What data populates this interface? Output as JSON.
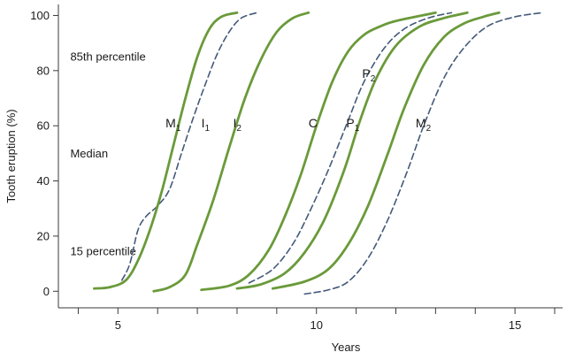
{
  "chart_data": {
    "type": "line",
    "xlabel": "Years",
    "ylabel": "Tooth eruption (%)",
    "xlim": [
      3.5,
      16.2
    ],
    "ylim": [
      -6,
      104
    ],
    "xticks": [
      4,
      5,
      6,
      7,
      8,
      9,
      10,
      11,
      12,
      13,
      14,
      15,
      16
    ],
    "xtick_labels": [
      "",
      "5",
      "",
      "",
      "",
      "",
      "10",
      "",
      "",
      "",
      "",
      "15",
      ""
    ],
    "yticks": [
      0,
      20,
      40,
      60,
      80,
      100
    ],
    "ytick_labels": [
      "0",
      "20",
      "40",
      "60",
      "80",
      "100"
    ],
    "grid": false,
    "colors": {
      "solid": "#6a9a3a",
      "dashed": "#44597a"
    },
    "annotations": [
      {
        "text": "85th percentile",
        "x": 3.8,
        "y": 85
      },
      {
        "text": "Median",
        "x": 3.8,
        "y": 50
      },
      {
        "text": "15 percentile",
        "x": 3.8,
        "y": 14.5
      }
    ],
    "series": [
      {
        "name": "M1",
        "label_main": "M",
        "label_sub": "1",
        "label_pos": [
          6.2,
          61
        ],
        "style": "solid",
        "points": [
          [
            4.4,
            1
          ],
          [
            4.8,
            1.5
          ],
          [
            5.2,
            4
          ],
          [
            5.5,
            11
          ],
          [
            5.8,
            22
          ],
          [
            6.1,
            36
          ],
          [
            6.4,
            53
          ],
          [
            6.7,
            70
          ],
          [
            7.0,
            85
          ],
          [
            7.3,
            95
          ],
          [
            7.6,
            99.5
          ],
          [
            8.0,
            101
          ]
        ]
      },
      {
        "name": "I1",
        "label_main": "I",
        "label_sub": "1",
        "label_pos": [
          7.1,
          61
        ],
        "style": "dashed",
        "points": [
          [
            5.1,
            4
          ],
          [
            5.3,
            10
          ],
          [
            5.5,
            22
          ],
          [
            5.7,
            27
          ],
          [
            6.0,
            31
          ],
          [
            6.3,
            37
          ],
          [
            6.6,
            50
          ],
          [
            6.9,
            63
          ],
          [
            7.2,
            75
          ],
          [
            7.5,
            86
          ],
          [
            7.8,
            94
          ],
          [
            8.1,
            99
          ],
          [
            8.5,
            101
          ]
        ]
      },
      {
        "name": "I2",
        "label_main": "I",
        "label_sub": "2",
        "label_pos": [
          7.9,
          61
        ],
        "style": "solid",
        "points": [
          [
            5.9,
            0
          ],
          [
            6.3,
            1.5
          ],
          [
            6.7,
            6
          ],
          [
            7.0,
            17
          ],
          [
            7.4,
            33
          ],
          [
            7.8,
            52
          ],
          [
            8.2,
            70
          ],
          [
            8.6,
            84
          ],
          [
            9.0,
            94
          ],
          [
            9.4,
            99
          ],
          [
            9.8,
            101
          ]
        ]
      },
      {
        "name": "C",
        "label_main": "C",
        "label_sub": "",
        "label_pos": [
          9.8,
          61
        ],
        "style": "solid",
        "points": [
          [
            7.1,
            0.5
          ],
          [
            7.8,
            2
          ],
          [
            8.3,
            6
          ],
          [
            8.8,
            15
          ],
          [
            9.2,
            27
          ],
          [
            9.6,
            42
          ],
          [
            10.0,
            60
          ],
          [
            10.4,
            76
          ],
          [
            10.8,
            87
          ],
          [
            11.2,
            93
          ],
          [
            11.6,
            96
          ],
          [
            12.0,
            98
          ],
          [
            13.0,
            101
          ]
        ]
      },
      {
        "name": "P1",
        "label_main": "P",
        "label_sub": "1",
        "label_pos": [
          10.75,
          61
        ],
        "style": "solid",
        "points": [
          [
            8.0,
            1
          ],
          [
            8.6,
            2.5
          ],
          [
            9.2,
            6.5
          ],
          [
            9.7,
            14
          ],
          [
            10.2,
            26
          ],
          [
            10.7,
            44
          ],
          [
            11.1,
            62
          ],
          [
            11.5,
            77
          ],
          [
            12.0,
            89
          ],
          [
            12.6,
            96
          ],
          [
            13.2,
            99
          ],
          [
            13.8,
            101
          ]
        ]
      },
      {
        "name": "P2",
        "label_main": "P",
        "label_sub": "2",
        "label_pos": [
          11.15,
          79
        ],
        "style": "dashed",
        "points": [
          [
            8.3,
            3
          ],
          [
            8.9,
            8
          ],
          [
            9.4,
            17
          ],
          [
            9.8,
            28
          ],
          [
            10.3,
            44
          ],
          [
            10.8,
            62
          ],
          [
            11.2,
            76
          ],
          [
            11.7,
            88
          ],
          [
            12.2,
            95
          ],
          [
            12.8,
            99
          ],
          [
            13.4,
            101
          ]
        ]
      },
      {
        "name": "M2",
        "label_main": "M",
        "label_sub": "2",
        "label_pos": [
          12.5,
          61
        ],
        "style": "solid",
        "points": [
          [
            8.9,
            1
          ],
          [
            9.7,
            3.5
          ],
          [
            10.3,
            8
          ],
          [
            10.8,
            17
          ],
          [
            11.3,
            31
          ],
          [
            11.8,
            50
          ],
          [
            12.2,
            66
          ],
          [
            12.7,
            82
          ],
          [
            13.2,
            92
          ],
          [
            13.7,
            97
          ],
          [
            14.2,
            99.5
          ],
          [
            14.6,
            101
          ]
        ]
      },
      {
        "name": "M2 (dashed)",
        "label_main": "",
        "label_sub": "",
        "label_pos": null,
        "style": "dashed",
        "points": [
          [
            9.7,
            -1
          ],
          [
            10.3,
            0.5
          ],
          [
            10.8,
            3.5
          ],
          [
            11.3,
            12
          ],
          [
            11.8,
            26
          ],
          [
            12.3,
            44
          ],
          [
            12.7,
            60
          ],
          [
            13.2,
            77
          ],
          [
            13.7,
            88
          ],
          [
            14.3,
            96
          ],
          [
            15.0,
            99.5
          ],
          [
            15.7,
            101
          ]
        ]
      }
    ]
  }
}
